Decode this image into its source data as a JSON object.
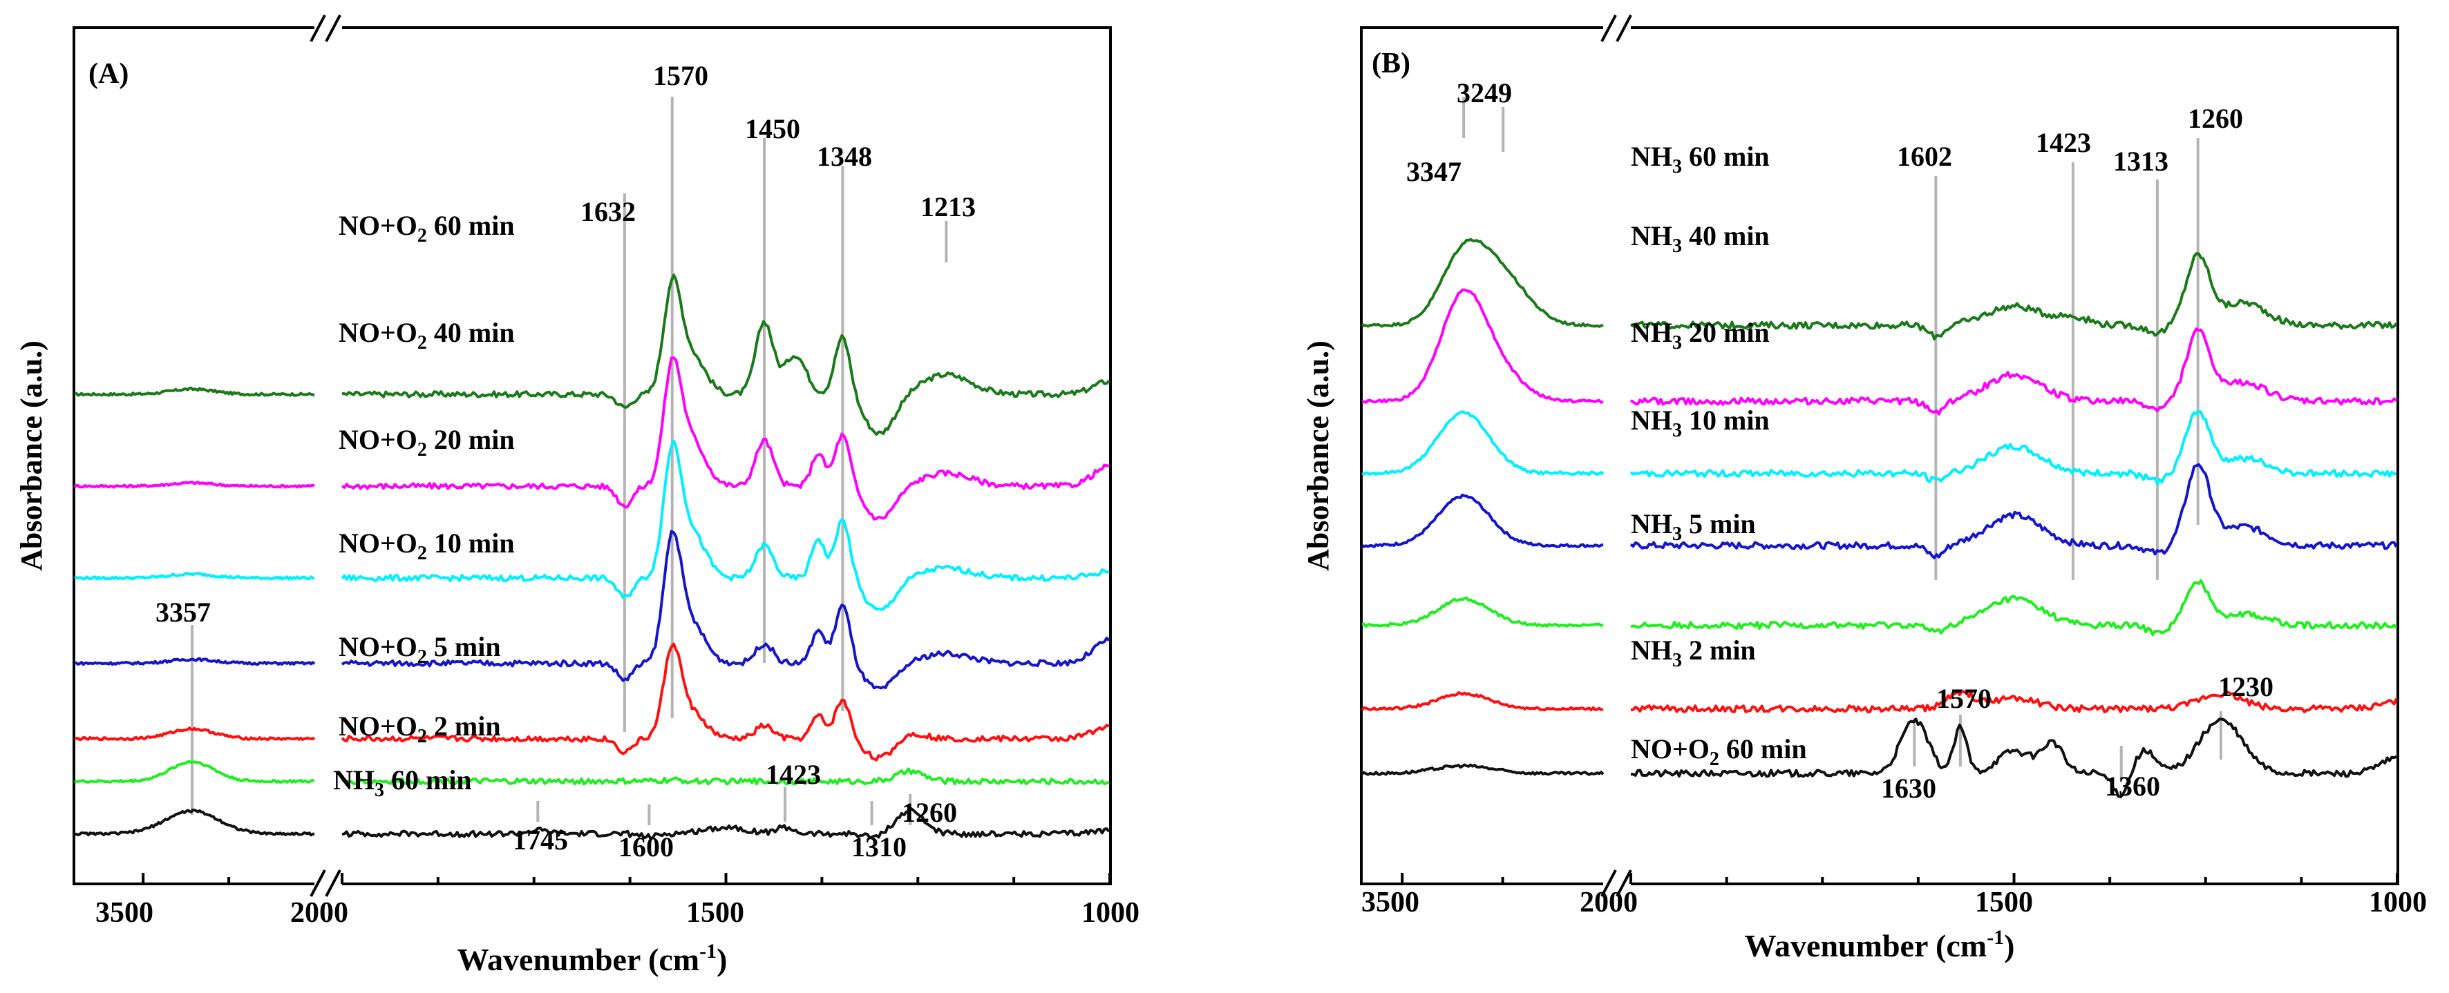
{
  "figure": {
    "ylabel": "Absorbance (a.u.)",
    "xlabel_main": "Wavenumber (cm",
    "xlabel_sup": "-1",
    "xlabel_end": ")"
  },
  "colors": {
    "green_dark": "#1a7a1a",
    "magenta": "#ff00ff",
    "cyan": "#00f0ff",
    "blue": "#1515cc",
    "red": "#ff1010",
    "green_light": "#20ee20",
    "black": "#111111",
    "guide": "#b4b4b4"
  },
  "chart_data": [
    {
      "type": "line",
      "panel": "(A)",
      "xlabel": "Wavenumber (cm-1)",
      "ylabel": "Absorbance (a.u.)",
      "x_axis": "reversed, broken between ~3700-3000 and 2000-1000",
      "x_ticks": [
        "3500",
        "2000",
        "1500",
        "1000"
      ],
      "series": [
        {
          "name": "NO+O2 60 min",
          "label_pre": "NO+O",
          "label_sub": "2",
          "label_post": " 60 min",
          "color": "green_dark",
          "offset": 6.2,
          "features": [
            [
              3357,
              0.08,
              90
            ],
            [
              1632,
              -0.2,
              14
            ],
            [
              1570,
              1.55,
              16
            ],
            [
              1545,
              0.6,
              25
            ],
            [
              1450,
              1.1,
              16
            ],
            [
              1410,
              0.6,
              20
            ],
            [
              1348,
              0.9,
              14
            ],
            [
              1300,
              -0.6,
              28
            ],
            [
              1213,
              0.3,
              45
            ],
            [
              1000,
              0.2,
              30
            ]
          ]
        },
        {
          "name": "NO+O2 40 min",
          "label_pre": "NO+O",
          "label_sub": "2",
          "label_post": " 40 min",
          "color": "magenta",
          "offset": 4.8,
          "features": [
            [
              3357,
              0.05,
              90
            ],
            [
              1632,
              -0.3,
              14
            ],
            [
              1570,
              1.7,
              16
            ],
            [
              1545,
              0.7,
              25
            ],
            [
              1450,
              0.7,
              16
            ],
            [
              1380,
              0.5,
              12
            ],
            [
              1348,
              0.8,
              14
            ],
            [
              1300,
              -0.5,
              28
            ],
            [
              1213,
              0.2,
              45
            ],
            [
              1000,
              0.3,
              30
            ]
          ]
        },
        {
          "name": "NO+O2 20 min",
          "label_pre": "NO+O",
          "label_sub": "2",
          "label_post": " 20 min",
          "color": "cyan",
          "offset": 3.4,
          "features": [
            [
              3357,
              0.06,
              90
            ],
            [
              1632,
              -0.3,
              14
            ],
            [
              1570,
              1.8,
              16
            ],
            [
              1545,
              0.7,
              25
            ],
            [
              1450,
              0.5,
              16
            ],
            [
              1380,
              0.6,
              12
            ],
            [
              1348,
              0.9,
              14
            ],
            [
              1300,
              -0.5,
              28
            ],
            [
              1213,
              0.15,
              45
            ],
            [
              1000,
              0.1,
              30
            ]
          ]
        },
        {
          "name": "NO+O2 10 min",
          "label_pre": "NO+O",
          "label_sub": "2",
          "label_post": " 10 min",
          "color": "blue",
          "offset": 2.1,
          "features": [
            [
              3357,
              0.06,
              90
            ],
            [
              1632,
              -0.25,
              14
            ],
            [
              1570,
              1.8,
              16
            ],
            [
              1545,
              0.6,
              25
            ],
            [
              1450,
              0.3,
              16
            ],
            [
              1380,
              0.5,
              12
            ],
            [
              1348,
              0.9,
              14
            ],
            [
              1300,
              -0.4,
              28
            ],
            [
              1213,
              0.15,
              45
            ],
            [
              1000,
              0.35,
              30
            ]
          ]
        },
        {
          "name": "NO+O2 5 min",
          "label_pre": "NO+O",
          "label_sub": "2",
          "label_post": " 5 min",
          "color": "red",
          "offset": 0.95,
          "features": [
            [
              3357,
              0.15,
              90
            ],
            [
              1632,
              -0.2,
              14
            ],
            [
              1570,
              1.3,
              16
            ],
            [
              1545,
              0.4,
              25
            ],
            [
              1450,
              0.2,
              16
            ],
            [
              1380,
              0.35,
              12
            ],
            [
              1348,
              0.6,
              14
            ],
            [
              1300,
              -0.3,
              28
            ],
            [
              1260,
              0.1,
              25
            ],
            [
              1000,
              0.2,
              30
            ]
          ]
        },
        {
          "name": "NO+O2 2 min",
          "label_pre": "NO+O",
          "label_sub": "2",
          "label_post": " 2 min",
          "color": "green_light",
          "offset": 0.3,
          "features": [
            [
              3357,
              0.3,
              90
            ],
            [
              1570,
              0.02,
              20
            ],
            [
              1260,
              0.15,
              25
            ]
          ]
        },
        {
          "name": "NH3 60 min",
          "label_pre": "NH",
          "label_sub": "3",
          "label_post": " 60 min",
          "color": "black",
          "offset": -0.5,
          "features": [
            [
              3357,
              0.35,
              110
            ],
            [
              1745,
              0.05,
              20
            ],
            [
              1600,
              -0.05,
              15
            ],
            [
              1500,
              0.1,
              40
            ],
            [
              1423,
              0.1,
              15
            ],
            [
              1310,
              -0.05,
              15
            ],
            [
              1260,
              0.35,
              25
            ],
            [
              1000,
              0.05,
              30
            ]
          ]
        }
      ],
      "annotations": [
        "3357",
        "1570",
        "1632",
        "1450",
        "1348",
        "1213",
        "1745",
        "1600",
        "1423",
        "1310",
        "1260"
      ]
    },
    {
      "type": "line",
      "panel": "(B)",
      "xlabel": "Wavenumber (cm-1)",
      "ylabel": "Absorbance (a.u.)",
      "x_axis": "reversed, broken between ~3600-3000 and 2000-1000",
      "x_ticks": [
        "3500",
        "2000",
        "1500",
        "1000"
      ],
      "series": [
        {
          "name": "NH3 60 min",
          "label_pre": "NH",
          "label_sub": "3",
          "label_post": "  60 min",
          "color": "green_dark",
          "offset": 5.9,
          "features": [
            [
              3347,
              0.9,
              80
            ],
            [
              3249,
              0.6,
              90
            ],
            [
              1602,
              -0.15,
              15
            ],
            [
              1500,
              0.25,
              50
            ],
            [
              1423,
              0.1,
              30
            ],
            [
              1313,
              -0.1,
              20
            ],
            [
              1260,
              0.9,
              22
            ],
            [
              1200,
              0.3,
              40
            ]
          ]
        },
        {
          "name": "NH3 40 min",
          "label_pre": "NH",
          "label_sub": "3",
          "label_post": "  40 min",
          "color": "magenta",
          "offset": 4.9,
          "features": [
            [
              3347,
              1.4,
              80
            ],
            [
              3249,
              0.3,
              80
            ],
            [
              1602,
              -0.15,
              15
            ],
            [
              1500,
              0.35,
              50
            ],
            [
              1313,
              -0.1,
              20
            ],
            [
              1260,
              0.9,
              22
            ],
            [
              1200,
              0.25,
              40
            ]
          ]
        },
        {
          "name": "NH3 20 min",
          "label_pre": "NH",
          "label_sub": "3",
          "label_post": "  20 min",
          "color": "cyan",
          "offset": 3.95,
          "features": [
            [
              3347,
              0.8,
              90
            ],
            [
              1602,
              -0.1,
              15
            ],
            [
              1500,
              0.35,
              50
            ],
            [
              1313,
              -0.1,
              20
            ],
            [
              1260,
              0.8,
              22
            ],
            [
              1200,
              0.2,
              40
            ]
          ]
        },
        {
          "name": "NH3 10 min",
          "label_pre": "NH",
          "label_sub": "3",
          "label_post": "  10 min",
          "color": "blue",
          "offset": 3.0,
          "features": [
            [
              3347,
              0.65,
              90
            ],
            [
              1602,
              -0.15,
              15
            ],
            [
              1500,
              0.4,
              50
            ],
            [
              1313,
              -0.1,
              20
            ],
            [
              1260,
              1.05,
              22
            ],
            [
              1200,
              0.25,
              40
            ]
          ]
        },
        {
          "name": "NH3 5 min",
          "label_pre": "NH",
          "label_sub": "3",
          "label_post": "  5 min",
          "color": "green_light",
          "offset": 1.95,
          "features": [
            [
              3347,
              0.35,
              90
            ],
            [
              1602,
              -0.1,
              15
            ],
            [
              1500,
              0.35,
              50
            ],
            [
              1313,
              -0.1,
              20
            ],
            [
              1260,
              0.55,
              22
            ],
            [
              1200,
              0.15,
              40
            ]
          ]
        },
        {
          "name": "NH3 2 min",
          "label_pre": "NH",
          "label_sub": "3",
          "label_post": "  2 min",
          "color": "red",
          "offset": 0.85,
          "features": [
            [
              3347,
              0.2,
              90
            ],
            [
              1570,
              0.2,
              25
            ],
            [
              1500,
              0.15,
              40
            ],
            [
              1230,
              0.2,
              40
            ],
            [
              1000,
              0.1,
              30
            ]
          ]
        },
        {
          "name": "NO+O2 60 min",
          "label_pre": "NO+O",
          "label_sub": "2",
          "label_post": "  60 min",
          "color": "black",
          "offset": 0.0,
          "features": [
            [
              3347,
              0.1,
              100
            ],
            [
              1630,
              0.7,
              25
            ],
            [
              1570,
              0.6,
              12
            ],
            [
              1500,
              0.3,
              30
            ],
            [
              1450,
              0.4,
              20
            ],
            [
              1360,
              -0.3,
              15
            ],
            [
              1330,
              0.3,
              20
            ],
            [
              1230,
              0.7,
              40
            ],
            [
              1000,
              0.2,
              30
            ]
          ]
        }
      ],
      "annotations": [
        "3347",
        "3249",
        "1602",
        "1423",
        "1313",
        "1260",
        "1570",
        "1230",
        "1630",
        "1360"
      ]
    }
  ]
}
